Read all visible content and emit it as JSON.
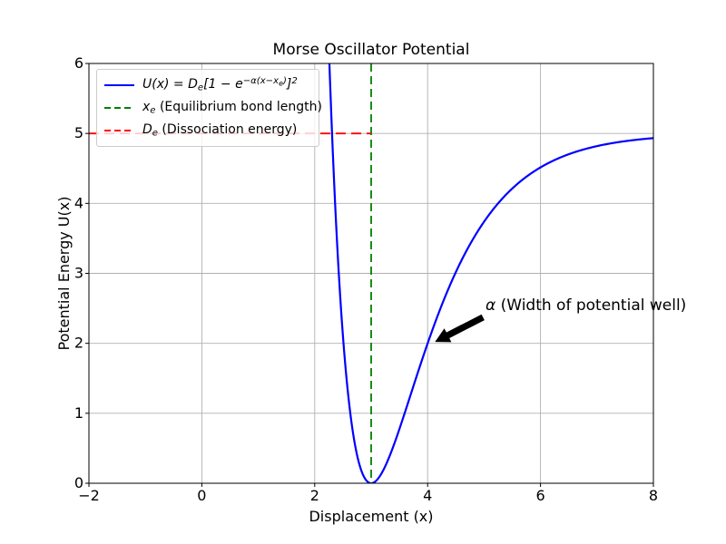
{
  "chart_data": {
    "type": "line",
    "title": "Morse Oscillator Potential",
    "xlabel": "Displacement (x)",
    "ylabel": "Potential Energy U(x)",
    "xlim": [
      -2,
      8
    ],
    "ylim": [
      0,
      6
    ],
    "xticks": [
      -2,
      0,
      2,
      4,
      6,
      8
    ],
    "yticks": [
      0,
      1,
      2,
      3,
      4,
      5,
      6
    ],
    "grid": true,
    "grid_color": "#b0b0b0",
    "legend_position": "upper left",
    "series": [
      {
        "name": "U(x) = De[1 − e^(−α(x−xe))]^2",
        "kind": "curve",
        "color": "#0000ff",
        "linestyle": "solid",
        "linewidth": 2,
        "formula": "U(x) = De*(1 − exp(−α*(x − xe)))^2",
        "params": {
          "De": 5,
          "xe": 3,
          "alpha": 1
        },
        "x_domain": [
          2.0,
          8.0
        ],
        "x": [
          2.2,
          2.3,
          2.4,
          2.5,
          2.6,
          2.7,
          2.8,
          2.9,
          3.0,
          3.1,
          3.2,
          3.3,
          3.4,
          3.5,
          3.6,
          3.7,
          3.8,
          3.9,
          4.0,
          4.2,
          4.4,
          4.6,
          4.8,
          5.0,
          5.2,
          5.4,
          5.6,
          5.8,
          6.0,
          6.2,
          6.4,
          6.6,
          6.8,
          7.0,
          7.2,
          7.4,
          7.6,
          7.8,
          8.0
        ],
        "y": [
          7.51,
          5.139,
          3.379,
          2.104,
          1.21,
          0.612,
          0.245,
          0.055,
          0.0,
          0.045,
          0.164,
          0.336,
          0.543,
          0.774,
          1.018,
          1.267,
          1.516,
          1.761,
          1.998,
          2.442,
          2.838,
          3.185,
          3.484,
          3.738,
          3.953,
          4.134,
          4.285,
          4.41,
          4.514,
          4.601,
          4.672,
          4.73,
          4.779,
          4.819,
          4.851,
          4.878,
          4.9,
          4.918,
          4.933
        ]
      },
      {
        "name": "xe (Equilibrium bond length)",
        "kind": "vline",
        "x": 3,
        "y_span": [
          0,
          6
        ],
        "color": "#008000",
        "linestyle": "dashed",
        "linewidth": 1.8
      },
      {
        "name": "De (Dissociation energy)",
        "kind": "hline",
        "y": 5,
        "x_span": [
          -2,
          3
        ],
        "color": "#ff0000",
        "linestyle": "dashed",
        "linewidth": 1.8
      }
    ],
    "annotation": {
      "text": "α (Width of potential well)",
      "xy": [
        4.13,
        2.02
      ],
      "text_xy": [
        5.03,
        2.45
      ],
      "arrow_color": "#000000"
    }
  },
  "legend": {
    "border_color": "#cccccc",
    "background": "rgba(255,255,255,0.8)",
    "items": [
      {
        "color": "#0000ff",
        "dash": false,
        "segments": [
          {
            "t": "U(x) = D",
            "s": "i"
          },
          {
            "t": "e",
            "s": "sub"
          },
          {
            "t": "[1 − e",
            "s": "i"
          },
          {
            "t": "−α(x−x",
            "s": "sup"
          },
          {
            "t": "e",
            "s": "supsub"
          },
          {
            "t": ")",
            "s": "sup"
          },
          {
            "t": "]",
            "s": "i"
          },
          {
            "t": "2",
            "s": "sup"
          }
        ]
      },
      {
        "color": "#008000",
        "dash": true,
        "segments": [
          {
            "t": "x",
            "s": "i"
          },
          {
            "t": "e",
            "s": "sub"
          },
          {
            "t": " (Equilibrium bond length)"
          }
        ]
      },
      {
        "color": "#ff0000",
        "dash": true,
        "segments": [
          {
            "t": "D",
            "s": "i"
          },
          {
            "t": "e",
            "s": "sub"
          },
          {
            "t": " (Dissociation energy)"
          }
        ]
      }
    ]
  },
  "annotation_label": {
    "segments": [
      {
        "t": "α",
        "s": "i"
      },
      {
        "t": " (Width of potential well)"
      }
    ]
  }
}
